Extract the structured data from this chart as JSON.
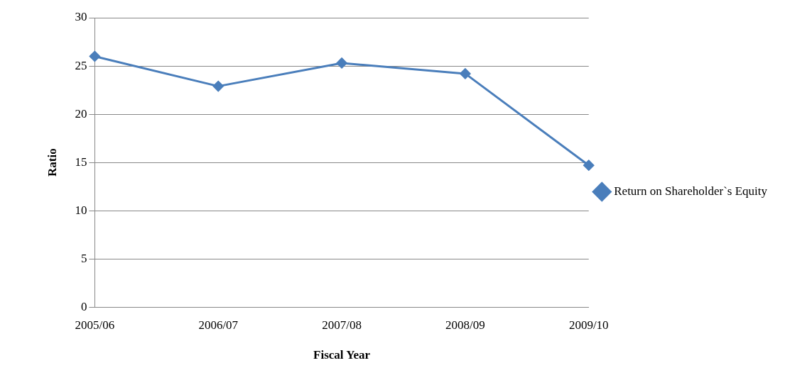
{
  "chart_data": {
    "type": "line",
    "xlabel": "Fiscal Year",
    "ylabel": "Ratio",
    "categories": [
      "2005/06",
      "2006/07",
      "2007/08",
      "2008/09",
      "2009/10"
    ],
    "series": [
      {
        "name": "Return on Shareholder`s Equity",
        "color": "#4a7ebb",
        "values": [
          26,
          22.9,
          25.3,
          24.2,
          14.7
        ]
      }
    ],
    "ylim": [
      0,
      30
    ],
    "yticks": [
      0,
      5,
      10,
      15,
      20,
      25,
      30
    ],
    "grid": "y",
    "legend": "right",
    "marker": "diamond",
    "line_style": "solid"
  }
}
